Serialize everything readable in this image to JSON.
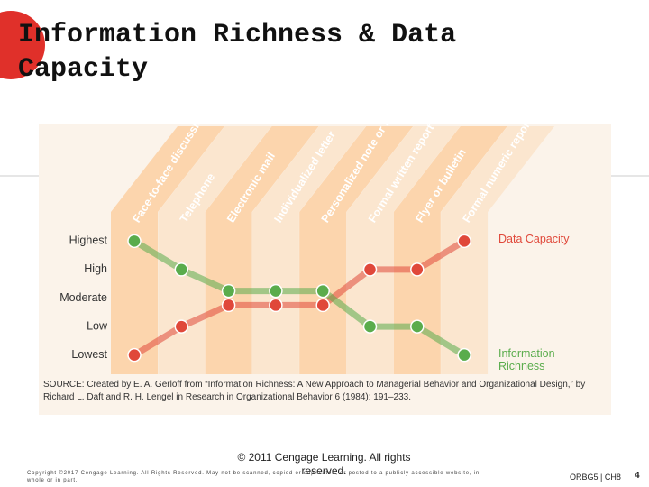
{
  "slide": {
    "title": "Information Richness & Data Capacity",
    "image_credit": "© 2011 Cengage Learning. All rights reserved.",
    "copyright": "Copyright ©2017 Cengage Learning. All Rights Reserved. May not be scanned, copied or duplicated, or posted to a publicly accessible website, in whole or in part.",
    "course": "ORBG5 | CH8",
    "page": "4"
  },
  "chart_data": {
    "type": "line",
    "categories": [
      "Face-to-face discussion",
      "Telephone",
      "Electronic mail",
      "Individualized letter",
      "Personalized note or memo",
      "Formal written report",
      "Flyer or bulletin",
      "Formal numeric report"
    ],
    "ylim": [
      0.8,
      5.2
    ],
    "yticks": [
      {
        "value": 5,
        "label": "Highest"
      },
      {
        "value": 4,
        "label": "High"
      },
      {
        "value": 3,
        "label": "Moderate"
      },
      {
        "value": 2,
        "label": "Low"
      },
      {
        "value": 1,
        "label": "Lowest"
      }
    ],
    "series": [
      {
        "name": "Data Capacity",
        "color": "#e0483a",
        "values": [
          1,
          2,
          2.75,
          2.75,
          2.75,
          4,
          4,
          5
        ]
      },
      {
        "name": "Information Richness",
        "color": "#5aac4c",
        "values": [
          5,
          4,
          3.25,
          3.25,
          3.25,
          2,
          2,
          1
        ]
      }
    ],
    "note": "SOURCE: Created by E. A. Gerloff from “Information Richness: A New Approach to Managerial Behavior and Organizational Design,” by Richard L. Daft and R. H. Lengel in Research in Organizational Behavior 6 (1984): 191–233."
  }
}
